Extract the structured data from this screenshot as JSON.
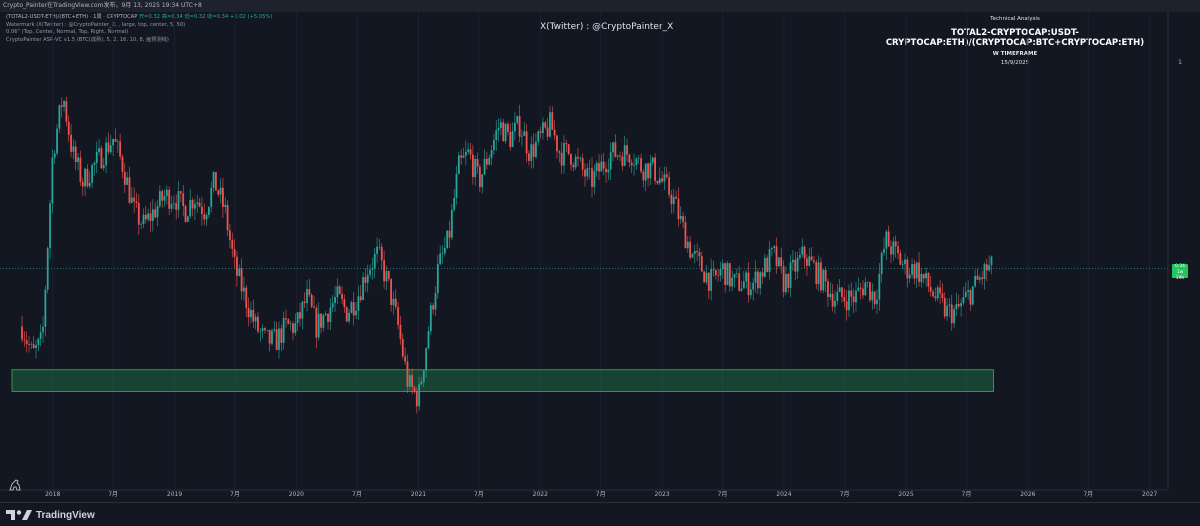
{
  "topbar": {
    "text": "Crypto_Painter在TradingView.com发布，9月 13, 2025 19:34 UTC+8"
  },
  "legend": {
    "symbol_line": "(TOTAL2-USDT-ETH)/(BTC+ETH) · 1周 · CRYPTOCAP",
    "ohlc": "开=0.32  高=0.34  低=0.32  收=0.34  +0.02 (+5.05%)",
    "watermark_line": "Watermark (X(Twitter) : @CryptoPainter_X, , large, top, center, 5, 50)",
    "indicator2_line": "0.06\" (Top, Center, Normal, Top, Right, Normal)",
    "indicator3_line": "CryptoPainter ASR-VC v1.5 (BTC(成熟), 5, 2, 16, 10, 8, 画预测线)"
  },
  "watermark": {
    "text": "X(Twitter) : @CryptoPainter_X"
  },
  "ta_box": {
    "heading": "Technical Analysis",
    "title": "TOTAL2-CRYPTOCAP:USDT-CRYPTOCAP:ETH)/(CRYPTOCAP:BTC+CRYPTOCAP:ETH)",
    "timeframe": "W TIMEFRAME",
    "date": "15/9/2025"
  },
  "price_label": {
    "value": "0.34",
    "sub": "1w 19h"
  },
  "price_axis_top": "1",
  "footer": {
    "brand": "TradingView"
  },
  "colors": {
    "up": "#26a69a",
    "down": "#ef5350",
    "zone_fill": "rgba(38,166,91,0.30)",
    "zone_border": "#3fb04f",
    "price_line": "#26a69a"
  },
  "chart_data": {
    "type": "candlestick",
    "timeframe": "weekly",
    "x_ticks": [
      "2018",
      "7月",
      "2019",
      "7月",
      "2020",
      "7月",
      "2021",
      "7月",
      "2022",
      "7月",
      "2023",
      "7月",
      "2024",
      "7月",
      "2025",
      "7月",
      "2026",
      "7月",
      "2027"
    ],
    "x_range": [
      "2017-09",
      "2027-02"
    ],
    "last_close": 0.34,
    "price_line_value": 0.34,
    "support_zone": {
      "from": "2017-09",
      "to": "2025-09",
      "low": 0.255,
      "high": 0.27
    },
    "close_path": [
      [
        "2017-10",
        0.3
      ],
      [
        "2017-11",
        0.28
      ],
      [
        "2017-12",
        0.29
      ],
      [
        "2018-01",
        0.42
      ],
      [
        "2018-02",
        0.46
      ],
      [
        "2018-03",
        0.42
      ],
      [
        "2018-04",
        0.4
      ],
      [
        "2018-05",
        0.41
      ],
      [
        "2018-06",
        0.42
      ],
      [
        "2018-07",
        0.43
      ],
      [
        "2018-08",
        0.41
      ],
      [
        "2018-09",
        0.38
      ],
      [
        "2018-10",
        0.37
      ],
      [
        "2018-11",
        0.38
      ],
      [
        "2018-12",
        0.39
      ],
      [
        "2019-01",
        0.39
      ],
      [
        "2019-02",
        0.38
      ],
      [
        "2019-03",
        0.39
      ],
      [
        "2019-04",
        0.38
      ],
      [
        "2019-05",
        0.4
      ],
      [
        "2019-06",
        0.38
      ],
      [
        "2019-07",
        0.34
      ],
      [
        "2019-08",
        0.32
      ],
      [
        "2019-09",
        0.3
      ],
      [
        "2019-10",
        0.29
      ],
      [
        "2019-11",
        0.29
      ],
      [
        "2019-12",
        0.3
      ],
      [
        "2020-01",
        0.3
      ],
      [
        "2020-02",
        0.32
      ],
      [
        "2020-03",
        0.3
      ],
      [
        "2020-04",
        0.31
      ],
      [
        "2020-05",
        0.32
      ],
      [
        "2020-06",
        0.31
      ],
      [
        "2020-07",
        0.32
      ],
      [
        "2020-08",
        0.34
      ],
      [
        "2020-09",
        0.35
      ],
      [
        "2020-10",
        0.33
      ],
      [
        "2020-11",
        0.3
      ],
      [
        "2020-12",
        0.26
      ],
      [
        "2021-01",
        0.25
      ],
      [
        "2021-02",
        0.3
      ],
      [
        "2021-03",
        0.34
      ],
      [
        "2021-04",
        0.36
      ],
      [
        "2021-05",
        0.41
      ],
      [
        "2021-06",
        0.42
      ],
      [
        "2021-07",
        0.4
      ],
      [
        "2021-08",
        0.42
      ],
      [
        "2021-09",
        0.44
      ],
      [
        "2021-10",
        0.43
      ],
      [
        "2021-11",
        0.44
      ],
      [
        "2021-12",
        0.42
      ],
      [
        "2022-01",
        0.43
      ],
      [
        "2022-02",
        0.44
      ],
      [
        "2022-03",
        0.42
      ],
      [
        "2022-04",
        0.42
      ],
      [
        "2022-05",
        0.41
      ],
      [
        "2022-06",
        0.4
      ],
      [
        "2022-07",
        0.41
      ],
      [
        "2022-08",
        0.42
      ],
      [
        "2022-09",
        0.42
      ],
      [
        "2022-10",
        0.42
      ],
      [
        "2022-11",
        0.41
      ],
      [
        "2022-12",
        0.41
      ],
      [
        "2023-01",
        0.4
      ],
      [
        "2023-02",
        0.39
      ],
      [
        "2023-03",
        0.37
      ],
      [
        "2023-04",
        0.35
      ],
      [
        "2023-05",
        0.34
      ],
      [
        "2023-06",
        0.33
      ],
      [
        "2023-07",
        0.34
      ],
      [
        "2023-08",
        0.33
      ],
      [
        "2023-09",
        0.33
      ],
      [
        "2023-10",
        0.33
      ],
      [
        "2023-11",
        0.34
      ],
      [
        "2023-12",
        0.35
      ],
      [
        "2024-01",
        0.33
      ],
      [
        "2024-02",
        0.34
      ],
      [
        "2024-03",
        0.35
      ],
      [
        "2024-04",
        0.34
      ],
      [
        "2024-05",
        0.33
      ],
      [
        "2024-06",
        0.32
      ],
      [
        "2024-07",
        0.32
      ],
      [
        "2024-08",
        0.32
      ],
      [
        "2024-09",
        0.33
      ],
      [
        "2024-10",
        0.32
      ],
      [
        "2024-11",
        0.36
      ],
      [
        "2024-12",
        0.35
      ],
      [
        "2025-01",
        0.34
      ],
      [
        "2025-02",
        0.34
      ],
      [
        "2025-03",
        0.33
      ],
      [
        "2025-04",
        0.32
      ],
      [
        "2025-05",
        0.31
      ],
      [
        "2025-06",
        0.31
      ],
      [
        "2025-07",
        0.32
      ],
      [
        "2025-08",
        0.33
      ],
      [
        "2025-09",
        0.34
      ]
    ]
  }
}
